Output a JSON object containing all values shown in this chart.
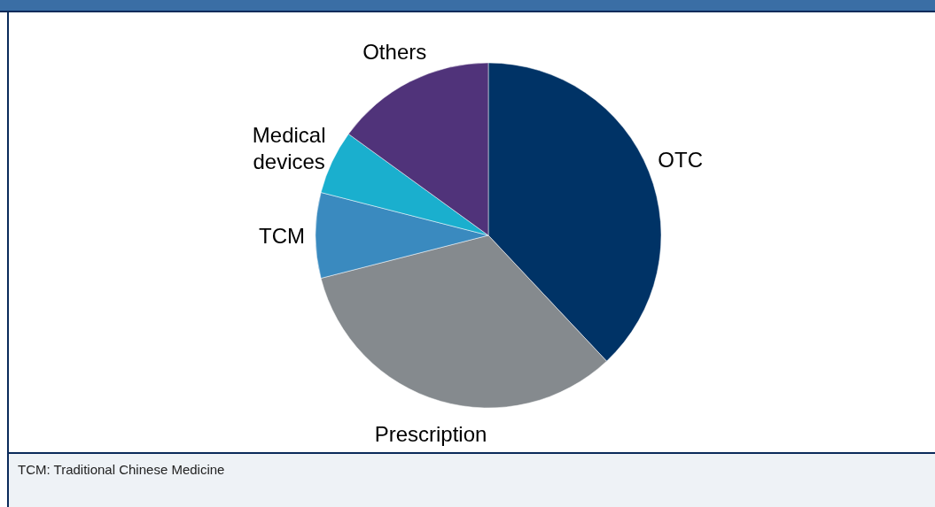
{
  "chart_data": {
    "type": "pie",
    "categories": [
      "OTC",
      "Prescription",
      "TCM",
      "Medical devices",
      "Others"
    ],
    "values": [
      38,
      33,
      8,
      6,
      15
    ],
    "colors": [
      "#003366",
      "#858a8e",
      "#3a8abf",
      "#1aafce",
      "#50337a"
    ],
    "legend": false,
    "annotations": [
      "TCM: Traditional Chinese Medicine"
    ]
  }
}
